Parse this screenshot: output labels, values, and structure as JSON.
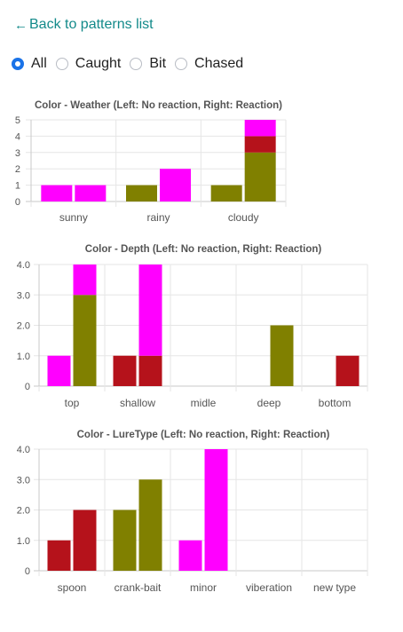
{
  "nav": {
    "back_label": "Back to patterns list",
    "back_icon": "left-arrow-icon"
  },
  "filters": {
    "options": [
      "All",
      "Caught",
      "Bit",
      "Chased"
    ],
    "selected": "All"
  },
  "colors": {
    "magenta": "#ff00ff",
    "olive": "#808000",
    "red": "#b5121b"
  },
  "chart_data": [
    {
      "type": "bar",
      "title": "Color - Weather (Left: No reaction, Right: Reaction)",
      "categories": [
        "sunny",
        "rainy",
        "cloudy"
      ],
      "yticks": [
        "0",
        "1",
        "2",
        "3",
        "4",
        "5"
      ],
      "ylim": [
        0,
        5
      ],
      "stacked": true,
      "bars": [
        [
          [
            {
              "color": "#ff00ff",
              "value": 1
            }
          ],
          [
            {
              "color": "#ff00ff",
              "value": 1
            }
          ]
        ],
        [
          [
            {
              "color": "#808000",
              "value": 1
            }
          ],
          [
            {
              "color": "#ff00ff",
              "value": 2
            }
          ]
        ],
        [
          [
            {
              "color": "#808000",
              "value": 1
            }
          ],
          [
            {
              "color": "#808000",
              "value": 3
            },
            {
              "color": "#b5121b",
              "value": 1
            },
            {
              "color": "#ff00ff",
              "value": 1
            }
          ]
        ]
      ]
    },
    {
      "type": "bar",
      "title": "Color - Depth (Left: No reaction, Right: Reaction)",
      "categories": [
        "top",
        "shallow",
        "midle",
        "deep",
        "bottom"
      ],
      "yticks": [
        "0",
        "1.0",
        "2.0",
        "3.0",
        "4.0"
      ],
      "ylim": [
        0,
        4
      ],
      "stacked": true,
      "bars": [
        [
          [
            {
              "color": "#ff00ff",
              "value": 1
            }
          ],
          [
            {
              "color": "#808000",
              "value": 3
            },
            {
              "color": "#ff00ff",
              "value": 1
            }
          ]
        ],
        [
          [
            {
              "color": "#b5121b",
              "value": 1
            }
          ],
          [
            {
              "color": "#b5121b",
              "value": 1
            },
            {
              "color": "#ff00ff",
              "value": 3
            }
          ]
        ],
        [
          [],
          []
        ],
        [
          [],
          [
            {
              "color": "#808000",
              "value": 2
            }
          ]
        ],
        [
          [],
          [
            {
              "color": "#b5121b",
              "value": 1
            }
          ]
        ]
      ]
    },
    {
      "type": "bar",
      "title": "Color - LureType (Left: No reaction, Right: Reaction)",
      "categories": [
        "spoon",
        "crank-bait",
        "minor",
        "viberation",
        "new type"
      ],
      "yticks": [
        "0",
        "1.0",
        "2.0",
        "3.0",
        "4.0"
      ],
      "ylim": [
        0,
        4
      ],
      "stacked": true,
      "bars": [
        [
          [
            {
              "color": "#b5121b",
              "value": 1
            }
          ],
          [
            {
              "color": "#b5121b",
              "value": 2
            }
          ]
        ],
        [
          [
            {
              "color": "#808000",
              "value": 2
            }
          ],
          [
            {
              "color": "#808000",
              "value": 3
            }
          ]
        ],
        [
          [
            {
              "color": "#ff00ff",
              "value": 1
            }
          ],
          [
            {
              "color": "#ff00ff",
              "value": 4
            }
          ]
        ],
        [
          [],
          []
        ],
        [
          [],
          []
        ]
      ]
    }
  ]
}
